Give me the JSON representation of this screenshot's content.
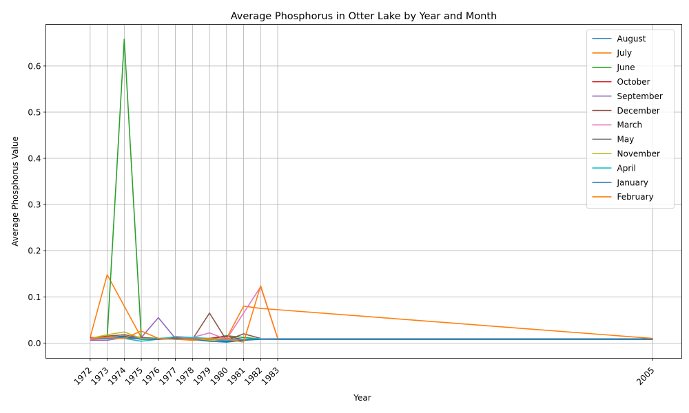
{
  "chart_data": {
    "type": "line",
    "title": "Average Phosphorus in Otter Lake by Year and Month",
    "xlabel": "Year",
    "ylabel": "Average Phosphorus Value",
    "xlim": [
      1969.4,
      2006.7
    ],
    "ylim": [
      -0.033,
      0.69
    ],
    "x_ticks": [
      1972,
      1973,
      1974,
      1975,
      1976,
      1977,
      1978,
      1979,
      1980,
      1981,
      1982,
      1983,
      2005
    ],
    "y_ticks": [
      0.0,
      0.1,
      0.2,
      0.3,
      0.4,
      0.5,
      0.6
    ],
    "y_tick_labels": [
      "0.0",
      "0.1",
      "0.2",
      "0.3",
      "0.4",
      "0.5",
      "0.6"
    ],
    "grid": true,
    "legend_position": "top-right",
    "series": [
      {
        "name": "August",
        "color": "#1f77b4",
        "points": [
          [
            1972,
            0.01
          ],
          [
            1973,
            0.012
          ],
          [
            1974,
            0.015
          ],
          [
            1975,
            0.01
          ],
          [
            1976,
            0.008
          ],
          [
            1977,
            0.012
          ],
          [
            1978,
            0.01
          ],
          [
            1979,
            0.008
          ],
          [
            1980,
            0.004
          ],
          [
            1981,
            0.006
          ],
          [
            1982,
            0.009
          ],
          [
            2005,
            0.009
          ]
        ]
      },
      {
        "name": "July",
        "color": "#ff7f0e",
        "points": [
          [
            1972,
            0.012
          ],
          [
            1973,
            0.148
          ],
          [
            1975,
            0.012
          ],
          [
            1976,
            0.01
          ],
          [
            1977,
            0.008
          ],
          [
            1978,
            0.006
          ],
          [
            1979,
            0.008
          ],
          [
            1980,
            0.01
          ],
          [
            1981,
            0.08
          ],
          [
            1982,
            0.075
          ],
          [
            2005,
            0.01
          ]
        ]
      },
      {
        "name": "June",
        "color": "#2ca02c",
        "points": [
          [
            1973,
            0.012
          ],
          [
            1974,
            0.658
          ],
          [
            1975,
            0.012
          ],
          [
            1976,
            0.01
          ],
          [
            1977,
            0.012
          ],
          [
            1978,
            0.008
          ],
          [
            1979,
            0.01
          ],
          [
            1980,
            0.016
          ],
          [
            1981,
            0.012
          ],
          [
            1982,
            0.009
          ]
        ]
      },
      {
        "name": "October",
        "color": "#d62728",
        "points": [
          [
            1972,
            0.012
          ],
          [
            1973,
            0.012
          ],
          [
            1974,
            0.01
          ],
          [
            1975,
            0.01
          ],
          [
            1976,
            0.008
          ],
          [
            1977,
            0.012
          ],
          [
            1978,
            0.01
          ],
          [
            1979,
            0.01
          ],
          [
            1980,
            0.014
          ],
          [
            1981,
            0.008
          ],
          [
            1982,
            0.01
          ]
        ]
      },
      {
        "name": "September",
        "color": "#9467bd",
        "points": [
          [
            1972,
            0.006
          ],
          [
            1973,
            0.006
          ],
          [
            1974,
            0.012
          ],
          [
            1975,
            0.012
          ],
          [
            1976,
            0.055
          ],
          [
            1977,
            0.01
          ],
          [
            1978,
            0.012
          ],
          [
            1979,
            0.008
          ],
          [
            1980,
            0.01
          ],
          [
            1981,
            0.006
          ],
          [
            1982,
            0.01
          ]
        ]
      },
      {
        "name": "December",
        "color": "#8c564b",
        "points": [
          [
            1972,
            0.01
          ],
          [
            1973,
            0.015
          ],
          [
            1974,
            0.018
          ],
          [
            1975,
            0.012
          ],
          [
            1976,
            0.008
          ],
          [
            1977,
            0.01
          ],
          [
            1978,
            0.008
          ],
          [
            1979,
            0.065
          ],
          [
            1980,
            0.006
          ],
          [
            1981,
            0.02
          ],
          [
            1982,
            0.01
          ]
        ]
      },
      {
        "name": "March",
        "color": "#e377c2",
        "points": [
          [
            1972,
            0.008
          ],
          [
            1973,
            0.01
          ],
          [
            1974,
            0.012
          ],
          [
            1975,
            0.01
          ],
          [
            1976,
            0.008
          ],
          [
            1977,
            0.01
          ],
          [
            1978,
            0.012
          ],
          [
            1979,
            0.022
          ],
          [
            1980,
            0.008
          ],
          [
            1981,
            0.065
          ],
          [
            1982,
            0.122
          ],
          [
            1983,
            0.01
          ]
        ]
      },
      {
        "name": "May",
        "color": "#7f7f7f",
        "points": [
          [
            1972,
            0.01
          ],
          [
            1973,
            0.01
          ],
          [
            1974,
            0.012
          ],
          [
            1975,
            0.01
          ],
          [
            1976,
            0.01
          ],
          [
            1977,
            0.008
          ],
          [
            1978,
            0.01
          ],
          [
            1979,
            0.008
          ],
          [
            1980,
            0.006
          ],
          [
            1981,
            0.008
          ],
          [
            1982,
            0.009
          ],
          [
            1983,
            0.008
          ],
          [
            2005,
            0.008
          ]
        ]
      },
      {
        "name": "November",
        "color": "#bcbd22",
        "points": [
          [
            1972,
            0.01
          ],
          [
            1973,
            0.018
          ],
          [
            1974,
            0.024
          ],
          [
            1975,
            0.01
          ],
          [
            1976,
            0.008
          ],
          [
            1977,
            0.01
          ],
          [
            1978,
            0.008
          ],
          [
            1979,
            0.006
          ],
          [
            1980,
            0.008
          ],
          [
            1981,
            0.006
          ],
          [
            1982,
            0.01
          ]
        ]
      },
      {
        "name": "April",
        "color": "#17becf",
        "points": [
          [
            1972,
            0.01
          ],
          [
            1973,
            0.012
          ],
          [
            1974,
            0.01
          ],
          [
            1975,
            0.004
          ],
          [
            1976,
            0.008
          ],
          [
            1977,
            0.014
          ],
          [
            1978,
            0.012
          ],
          [
            1979,
            0.01
          ],
          [
            1980,
            0.006
          ],
          [
            1981,
            0.008
          ],
          [
            1982,
            0.01
          ]
        ]
      },
      {
        "name": "January",
        "color": "#1f77b4",
        "points": [
          [
            1972,
            0.01
          ],
          [
            1973,
            0.01
          ],
          [
            1974,
            0.014
          ],
          [
            1975,
            0.008
          ],
          [
            1976,
            0.008
          ],
          [
            1977,
            0.01
          ],
          [
            1978,
            0.008
          ],
          [
            1979,
            0.004
          ],
          [
            1980,
            0.002
          ],
          [
            1981,
            0.006
          ],
          [
            1982,
            0.008
          ],
          [
            2005,
            0.008
          ]
        ]
      },
      {
        "name": "February",
        "color": "#ff7f0e",
        "points": [
          [
            1972,
            0.01
          ],
          [
            1973,
            0.012
          ],
          [
            1974,
            0.01
          ],
          [
            1975,
            0.026
          ],
          [
            1976,
            0.01
          ],
          [
            1977,
            0.008
          ],
          [
            1978,
            0.008
          ],
          [
            1979,
            0.01
          ],
          [
            1980,
            0.008
          ],
          [
            1981,
            0.002
          ],
          [
            1982,
            0.124
          ],
          [
            1983,
            0.01
          ]
        ]
      }
    ]
  }
}
